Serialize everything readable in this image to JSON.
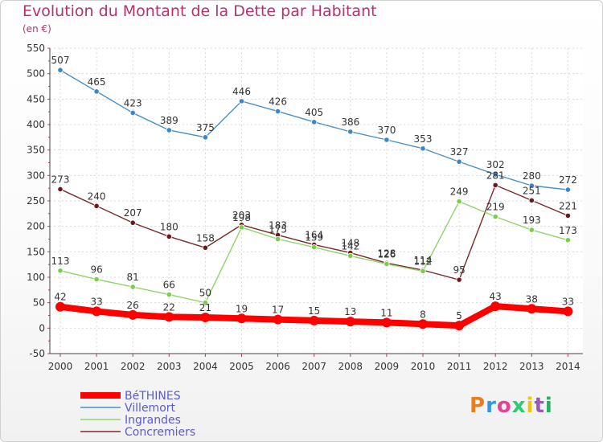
{
  "header": {
    "title": "Evolution du Montant de la Dette par Habitant",
    "subtitle": "(en €)"
  },
  "logo": {
    "text": "Proxiti",
    "colors": [
      "#e67e22",
      "#3498db",
      "#e84393",
      "#2ecc71",
      "#f1c40f",
      "#9b59b6",
      "#27ae60"
    ]
  },
  "chart_data": {
    "type": "line",
    "categories": [
      "2000",
      "2001",
      "2002",
      "2003",
      "2004",
      "2005",
      "2006",
      "2007",
      "2008",
      "2009",
      "2010",
      "2011",
      "2012",
      "2013",
      "2014"
    ],
    "yticks": [
      550,
      500,
      450,
      400,
      350,
      300,
      250,
      200,
      150,
      100,
      50,
      0,
      -50
    ],
    "ylim": [
      -50,
      550
    ],
    "grid": true,
    "legend_position": "bottom-left",
    "series": [
      {
        "name": "Villemort",
        "color": "#4a90c6",
        "marker": "#3a86c8",
        "values": [
          507,
          465,
          423,
          389,
          375,
          446,
          426,
          405,
          386,
          370,
          353,
          327,
          302,
          280,
          272
        ],
        "labels": [
          "507",
          "465",
          "423",
          "389",
          "375",
          "446",
          "426",
          "405",
          "386",
          "370",
          "353",
          "327",
          "302",
          "280",
          "272"
        ]
      },
      {
        "name": "Concremiers",
        "color": "#7a2a2a",
        "marker": "#6b1a1a",
        "values": [
          273,
          240,
          207,
          180,
          158,
          203,
          183,
          164,
          148,
          128,
          114,
          95,
          281,
          251,
          221
        ],
        "labels": [
          "273",
          "240",
          "207",
          "180",
          "158",
          "203",
          "183",
          "164",
          "148",
          "128",
          "114",
          "95",
          "281",
          "251",
          "221"
        ]
      },
      {
        "name": "Ingrandes",
        "color": "#8fd36b",
        "marker": "#7ccc4a",
        "values": [
          113,
          96,
          81,
          66,
          50,
          198,
          175,
          159,
          142,
          126,
          112,
          249,
          219,
          193,
          173
        ],
        "labels": [
          "113",
          "96",
          "81",
          "66",
          "50",
          "198",
          "175",
          "159",
          "142",
          "126",
          "112",
          "249",
          "219",
          "193",
          "173"
        ]
      },
      {
        "name": "BéTHINES",
        "color": "#ff0000",
        "marker": "#ff0000",
        "values": [
          42,
          33,
          26,
          22,
          21,
          19,
          17,
          15,
          13,
          11,
          8,
          5,
          43,
          38,
          33
        ],
        "labels": [
          "42",
          "33",
          "26",
          "22",
          "21",
          "19",
          "17",
          "15",
          "13",
          "11",
          "8",
          "5",
          "43",
          "38",
          "33"
        ]
      }
    ],
    "legend": [
      "BéTHINES",
      "Villemort",
      "Ingrandes",
      "Concremiers"
    ]
  }
}
